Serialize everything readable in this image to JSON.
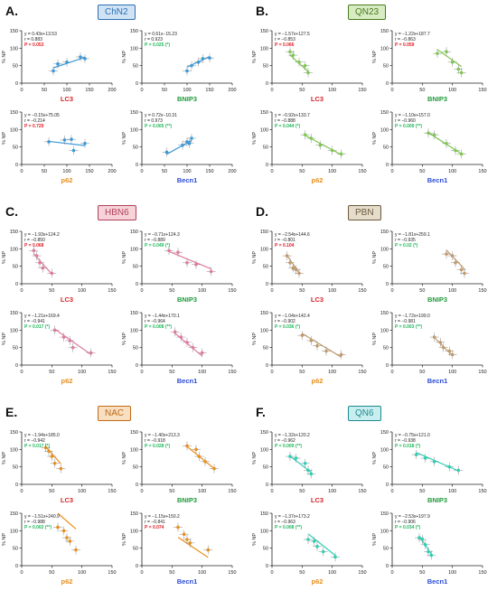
{
  "figure": {
    "panels": [
      {
        "letter": "A.",
        "label": "ChN2",
        "badge_bg": "#cfe3f5",
        "badge_fg": "#2f6fb3",
        "color": "#3a9ad9"
      },
      {
        "letter": "B.",
        "label": "QN23",
        "badge_bg": "#d8ecc4",
        "badge_fg": "#4a7a1c",
        "color": "#7ec850"
      },
      {
        "letter": "C.",
        "label": "HBN6",
        "badge_bg": "#f7d3d9",
        "badge_fg": "#b0405a",
        "color": "#e07aa0"
      },
      {
        "letter": "D.",
        "label": "PBN",
        "badge_bg": "#e6dccb",
        "badge_fg": "#6a5a3e",
        "color": "#c19a6b"
      },
      {
        "letter": "E.",
        "label": "NAC",
        "badge_bg": "#f9dfc2",
        "badge_fg": "#c06a14",
        "color": "#e8901e"
      },
      {
        "letter": "F.",
        "label": "QN6",
        "badge_bg": "#c9eef0",
        "badge_fg": "#1f8a8f",
        "color": "#2dcfb5"
      }
    ]
  },
  "chart_data": [
    {
      "panel": "ChN2",
      "type": "scatter",
      "xlabel": "LC3",
      "ylabel": "% NP",
      "xlim": [
        0,
        200
      ],
      "ylim": [
        0,
        150
      ],
      "xticks": [
        0,
        50,
        100,
        150,
        200
      ],
      "yticks": [
        0,
        50,
        100,
        150
      ],
      "x": [
        70,
        80,
        100,
        130,
        140
      ],
      "y": [
        35,
        55,
        60,
        75,
        70
      ],
      "fit": {
        "slope": 0.43,
        "intercept": 13.53
      },
      "annotations": [
        "y = 0.43x+13.53",
        "r = 0.883",
        "P = 0.053"
      ],
      "p_significant": false
    },
    {
      "panel": "ChN2",
      "type": "scatter",
      "xlabel": "BNIP3",
      "ylabel": "% NP",
      "xlim": [
        0,
        200
      ],
      "ylim": [
        0,
        150
      ],
      "xticks": [
        0,
        50,
        100,
        150,
        200
      ],
      "yticks": [
        0,
        50,
        100,
        150
      ],
      "x": [
        100,
        110,
        125,
        135,
        150
      ],
      "y": [
        35,
        50,
        60,
        70,
        72
      ],
      "fit": {
        "slope": 0.61,
        "intercept": -15.23
      },
      "annotations": [
        "y = 0.61x−15.23",
        "r = 0.923",
        "P = 0.025 (*)"
      ],
      "p_significant": true
    },
    {
      "panel": "ChN2",
      "type": "scatter",
      "xlabel": "p62",
      "ylabel": "% NP",
      "xlim": [
        0,
        200
      ],
      "ylim": [
        0,
        150
      ],
      "xticks": [
        0,
        50,
        100,
        150,
        200
      ],
      "yticks": [
        0,
        50,
        100,
        150
      ],
      "x": [
        60,
        95,
        110,
        115,
        140
      ],
      "y": [
        65,
        70,
        72,
        40,
        60
      ],
      "fit": {
        "slope": -0.15,
        "intercept": 75.05
      },
      "annotations": [
        "y = −0.15x+75.05",
        "r = −0.214",
        "P = 0.729"
      ],
      "p_significant": false
    },
    {
      "panel": "ChN2",
      "type": "scatter",
      "xlabel": "Becn1",
      "ylabel": "% NP",
      "xlim": [
        0,
        200
      ],
      "ylim": [
        0,
        150
      ],
      "xticks": [
        0,
        50,
        100,
        150,
        200
      ],
      "yticks": [
        0,
        50,
        100,
        150
      ],
      "x": [
        55,
        90,
        100,
        105,
        110
      ],
      "y": [
        35,
        55,
        65,
        60,
        75
      ],
      "fit": {
        "slope": 0.72,
        "intercept": -10.31
      },
      "annotations": [
        "y = 0.72x−10.31",
        "r = 0.973",
        "P = 0.005 (**)"
      ],
      "p_significant": true
    },
    {
      "panel": "QN23",
      "type": "scatter",
      "xlabel": "LC3",
      "ylabel": "% NP",
      "xlim": [
        0,
        150
      ],
      "ylim": [
        0,
        150
      ],
      "xticks": [
        0,
        50,
        100,
        150
      ],
      "yticks": [
        0,
        50,
        100,
        150
      ],
      "x": [
        30,
        35,
        45,
        55,
        60
      ],
      "y": [
        90,
        80,
        60,
        50,
        30
      ],
      "fit": {
        "slope": -1.57,
        "intercept": 127.5
      },
      "annotations": [
        "y = −1.57x+127.5",
        "r = −0.853",
        "P = 0.066"
      ],
      "p_significant": false
    },
    {
      "panel": "QN23",
      "type": "scatter",
      "xlabel": "BNIP3",
      "ylabel": "% NP",
      "xlim": [
        0,
        150
      ],
      "ylim": [
        0,
        150
      ],
      "xticks": [
        0,
        50,
        100,
        150
      ],
      "yticks": [
        0,
        50,
        100,
        150
      ],
      "x": [
        75,
        90,
        100,
        110,
        115
      ],
      "y": [
        85,
        90,
        60,
        40,
        30
      ],
      "fit": {
        "slope": -1.22,
        "intercept": 187.7
      },
      "annotations": [
        "y = −1.22x+187.7",
        "r = −0.863",
        "P = 0.059"
      ],
      "p_significant": false
    },
    {
      "panel": "QN23",
      "type": "scatter",
      "xlabel": "p62",
      "ylabel": "% NP",
      "xlim": [
        0,
        150
      ],
      "ylim": [
        0,
        150
      ],
      "xticks": [
        0,
        50,
        100,
        150
      ],
      "yticks": [
        0,
        50,
        100,
        150
      ],
      "x": [
        55,
        65,
        80,
        100,
        115
      ],
      "y": [
        85,
        75,
        55,
        40,
        30
      ],
      "fit": {
        "slope": -0.92,
        "intercept": 133.7
      },
      "annotations": [
        "y = −0.92x+133.7",
        "r = −0.888",
        "P = 0.044 (*)"
      ],
      "p_significant": true
    },
    {
      "panel": "QN23",
      "type": "scatter",
      "xlabel": "Becn1",
      "ylabel": "% NP",
      "xlim": [
        0,
        150
      ],
      "ylim": [
        0,
        150
      ],
      "xticks": [
        0,
        50,
        100,
        150
      ],
      "yticks": [
        0,
        50,
        100,
        150
      ],
      "x": [
        60,
        70,
        90,
        105,
        115
      ],
      "y": [
        90,
        85,
        60,
        40,
        30
      ],
      "fit": {
        "slope": -1.1,
        "intercept": 157.0
      },
      "annotations": [
        "y = −1.10x+157.0",
        "r = −0.960",
        "P = 0.009 (**)"
      ],
      "p_significant": true
    },
    {
      "panel": "HBN6",
      "type": "scatter",
      "xlabel": "LC3",
      "ylabel": "% NP",
      "xlim": [
        0,
        150
      ],
      "ylim": [
        0,
        150
      ],
      "xticks": [
        0,
        50,
        100,
        150
      ],
      "yticks": [
        0,
        50,
        100,
        150
      ],
      "x": [
        20,
        25,
        30,
        35,
        50
      ],
      "y": [
        95,
        80,
        60,
        45,
        30
      ],
      "fit": {
        "slope": -1.93,
        "intercept": 124.2
      },
      "annotations": [
        "y = −1.93x+124.2",
        "r = −0.850",
        "P = 0.068"
      ],
      "p_significant": false
    },
    {
      "panel": "HBN6",
      "type": "scatter",
      "xlabel": "BNIP3",
      "ylabel": "% NP",
      "xlim": [
        0,
        150
      ],
      "ylim": [
        0,
        150
      ],
      "xticks": [
        0,
        50,
        100,
        150
      ],
      "yticks": [
        0,
        50,
        100,
        150
      ],
      "x": [
        45,
        60,
        75,
        90,
        115
      ],
      "y": [
        95,
        90,
        60,
        55,
        35
      ],
      "fit": {
        "slope": -0.71,
        "intercept": 124.3
      },
      "annotations": [
        "y = −0.71x+124.3",
        "r = −0.889",
        "P = 0.049 (*)"
      ],
      "p_significant": true
    },
    {
      "panel": "HBN6",
      "type": "scatter",
      "xlabel": "p62",
      "ylabel": "% NP",
      "xlim": [
        0,
        150
      ],
      "ylim": [
        0,
        150
      ],
      "xticks": [
        0,
        50,
        100,
        150
      ],
      "yticks": [
        0,
        50,
        100,
        150
      ],
      "x": [
        55,
        70,
        80,
        85,
        115
      ],
      "y": [
        100,
        80,
        70,
        50,
        35
      ],
      "fit": {
        "slope": -1.21,
        "intercept": 169.4
      },
      "annotations": [
        "y = −1.21x+169.4",
        "r = −0.941",
        "P = 0.017 (*)"
      ],
      "p_significant": true
    },
    {
      "panel": "HBN6",
      "type": "scatter",
      "xlabel": "Becn1",
      "ylabel": "% NP",
      "xlim": [
        0,
        150
      ],
      "ylim": [
        0,
        150
      ],
      "xticks": [
        0,
        50,
        100,
        150
      ],
      "yticks": [
        0,
        50,
        100,
        150
      ],
      "x": [
        55,
        65,
        75,
        85,
        100
      ],
      "y": [
        95,
        80,
        65,
        50,
        35
      ],
      "fit": {
        "slope": -1.44,
        "intercept": 170.1
      },
      "annotations": [
        "y = −1.44x+170.1",
        "r = −0.964",
        "P = 0.008 (**)"
      ],
      "p_significant": true
    },
    {
      "panel": "PBN",
      "type": "scatter",
      "xlabel": "LC3",
      "ylabel": "% NP",
      "xlim": [
        0,
        150
      ],
      "ylim": [
        0,
        150
      ],
      "xticks": [
        0,
        50,
        100,
        150
      ],
      "yticks": [
        0,
        50,
        100,
        150
      ],
      "x": [
        25,
        30,
        35,
        40,
        45
      ],
      "y": [
        80,
        60,
        45,
        40,
        30
      ],
      "fit": {
        "slope": -2.54,
        "intercept": 144.6
      },
      "annotations": [
        "y = −2.54x+144.6",
        "r = −0.801",
        "P = 0.104"
      ],
      "p_significant": false
    },
    {
      "panel": "PBN",
      "type": "scatter",
      "xlabel": "BNIP3",
      "ylabel": "% NP",
      "xlim": [
        0,
        150
      ],
      "ylim": [
        0,
        150
      ],
      "xticks": [
        0,
        50,
        100,
        150
      ],
      "yticks": [
        0,
        50,
        100,
        150
      ],
      "x": [
        90,
        100,
        105,
        115,
        120
      ],
      "y": [
        85,
        80,
        60,
        40,
        30
      ],
      "fit": {
        "slope": -1.81,
        "intercept": 259.1
      },
      "annotations": [
        "y = −1.81x+259.1",
        "r = −0.935",
        "P = 0.02 (*)"
      ],
      "p_significant": true
    },
    {
      "panel": "PBN",
      "type": "scatter",
      "xlabel": "p62",
      "ylabel": "% NP",
      "xlim": [
        0,
        150
      ],
      "ylim": [
        0,
        150
      ],
      "xticks": [
        0,
        50,
        100,
        150
      ],
      "yticks": [
        0,
        50,
        100,
        150
      ],
      "x": [
        50,
        65,
        75,
        90,
        115
      ],
      "y": [
        85,
        70,
        55,
        40,
        30
      ],
      "fit": {
        "slope": -1.04,
        "intercept": 142.4
      },
      "annotations": [
        "y = −1.04x+142.4",
        "r = −0.902",
        "P = 0.036 (*)"
      ],
      "p_significant": true
    },
    {
      "panel": "PBN",
      "type": "scatter",
      "xlabel": "Becn1",
      "ylabel": "% NP",
      "xlim": [
        0,
        150
      ],
      "ylim": [
        0,
        150
      ],
      "xticks": [
        0,
        50,
        100,
        150
      ],
      "yticks": [
        0,
        50,
        100,
        150
      ],
      "x": [
        70,
        80,
        85,
        95,
        100
      ],
      "y": [
        80,
        65,
        50,
        40,
        30
      ],
      "fit": {
        "slope": -1.72,
        "intercept": 199.0
      },
      "annotations": [
        "y = −1.72x+199.0",
        "r = −0.981",
        "P = 0.003 (**)"
      ],
      "p_significant": true
    },
    {
      "panel": "NAC",
      "type": "scatter",
      "xlabel": "LC3",
      "ylabel": "% NP",
      "xlim": [
        0,
        150
      ],
      "ylim": [
        0,
        150
      ],
      "xticks": [
        0,
        50,
        100,
        150
      ],
      "yticks": [
        0,
        50,
        100,
        150
      ],
      "x": [
        40,
        45,
        50,
        55,
        65
      ],
      "y": [
        105,
        95,
        80,
        60,
        45
      ],
      "fit": {
        "slope": -1.94,
        "intercept": 185.0
      },
      "annotations": [
        "y = −1.94x+185.0",
        "r = −0.942",
        "P = 0.017 (*)"
      ],
      "p_significant": true
    },
    {
      "panel": "NAC",
      "type": "scatter",
      "xlabel": "BNIP3",
      "ylabel": "% NP",
      "xlim": [
        0,
        150
      ],
      "ylim": [
        0,
        150
      ],
      "xticks": [
        0,
        50,
        100,
        150
      ],
      "yticks": [
        0,
        50,
        100,
        150
      ],
      "x": [
        75,
        90,
        95,
        105,
        120
      ],
      "y": [
        110,
        100,
        80,
        65,
        45
      ],
      "fit": {
        "slope": -1.4,
        "intercept": 213.3
      },
      "annotations": [
        "y = −1.40x+213.3",
        "r = −0.918",
        "P = 0.028 (*)"
      ],
      "p_significant": true
    },
    {
      "panel": "NAC",
      "type": "scatter",
      "xlabel": "p62",
      "ylabel": "% NP",
      "xlim": [
        0,
        150
      ],
      "ylim": [
        0,
        150
      ],
      "xticks": [
        0,
        50,
        100,
        150
      ],
      "yticks": [
        0,
        50,
        100,
        150
      ],
      "x": [
        60,
        70,
        75,
        80,
        90
      ],
      "y": [
        110,
        100,
        80,
        70,
        45
      ],
      "fit": {
        "slope": -1.51,
        "intercept": 240.9
      },
      "annotations": [
        "y = −1.51x+240.9",
        "r = −0.988",
        "P = 0.002 (**)"
      ],
      "p_significant": true
    },
    {
      "panel": "NAC",
      "type": "scatter",
      "xlabel": "Becn1",
      "ylabel": "% NP",
      "xlim": [
        0,
        150
      ],
      "ylim": [
        0,
        150
      ],
      "xticks": [
        0,
        50,
        100,
        150
      ],
      "yticks": [
        0,
        50,
        100,
        150
      ],
      "x": [
        60,
        70,
        75,
        80,
        110
      ],
      "y": [
        110,
        90,
        75,
        65,
        45
      ],
      "fit": {
        "slope": -1.15,
        "intercept": 150.2
      },
      "annotations": [
        "y = −1.15x+150.2",
        "r = −0.841",
        "P = 0.074"
      ],
      "p_significant": false
    },
    {
      "panel": "QN6",
      "type": "scatter",
      "xlabel": "LC3",
      "ylabel": "% NP",
      "xlim": [
        0,
        150
      ],
      "ylim": [
        0,
        150
      ],
      "xticks": [
        0,
        50,
        100,
        150
      ],
      "yticks": [
        0,
        50,
        100,
        150
      ],
      "x": [
        30,
        40,
        55,
        60,
        65
      ],
      "y": [
        80,
        75,
        60,
        40,
        30
      ],
      "fit": {
        "slope": -1.32,
        "intercept": 120.2
      },
      "annotations": [
        "y = −1.32x+120.2",
        "r = −0.962",
        "P = 0.009 (**)"
      ],
      "p_significant": true
    },
    {
      "panel": "QN6",
      "type": "scatter",
      "xlabel": "BNIP3",
      "ylabel": "% NP",
      "xlim": [
        0,
        150
      ],
      "ylim": [
        0,
        150
      ],
      "xticks": [
        0,
        50,
        100,
        150
      ],
      "yticks": [
        0,
        50,
        100,
        150
      ],
      "x": [
        40,
        55,
        70,
        95,
        110
      ],
      "y": [
        85,
        75,
        65,
        50,
        40
      ],
      "fit": {
        "slope": -0.75,
        "intercept": 121.0
      },
      "annotations": [
        "y = −0.75x+121.0",
        "r = −0.938",
        "P = 0.018 (*)"
      ],
      "p_significant": true
    },
    {
      "panel": "QN6",
      "type": "scatter",
      "xlabel": "p62",
      "ylabel": "% NP",
      "xlim": [
        0,
        150
      ],
      "ylim": [
        0,
        150
      ],
      "xticks": [
        0,
        50,
        100,
        150
      ],
      "yticks": [
        0,
        50,
        100,
        150
      ],
      "x": [
        60,
        70,
        75,
        85,
        105
      ],
      "y": [
        75,
        70,
        55,
        40,
        25
      ],
      "fit": {
        "slope": -1.37,
        "intercept": 173.2
      },
      "annotations": [
        "y = −1.37x+173.2",
        "r = −0.963",
        "P = 0.008 (**)"
      ],
      "p_significant": true
    },
    {
      "panel": "QN6",
      "type": "scatter",
      "xlabel": "Becn1",
      "ylabel": "% NP",
      "xlim": [
        0,
        150
      ],
      "ylim": [
        0,
        150
      ],
      "xticks": [
        0,
        50,
        100,
        150
      ],
      "yticks": [
        0,
        50,
        100,
        150
      ],
      "x": [
        45,
        50,
        55,
        60,
        65
      ],
      "y": [
        80,
        75,
        60,
        40,
        30
      ],
      "fit": {
        "slope": -2.53,
        "intercept": 197.9
      },
      "annotations": [
        "y = −2.53x+197.9",
        "r = −0.906",
        "P = 0.034 (*)"
      ],
      "p_significant": true
    }
  ]
}
